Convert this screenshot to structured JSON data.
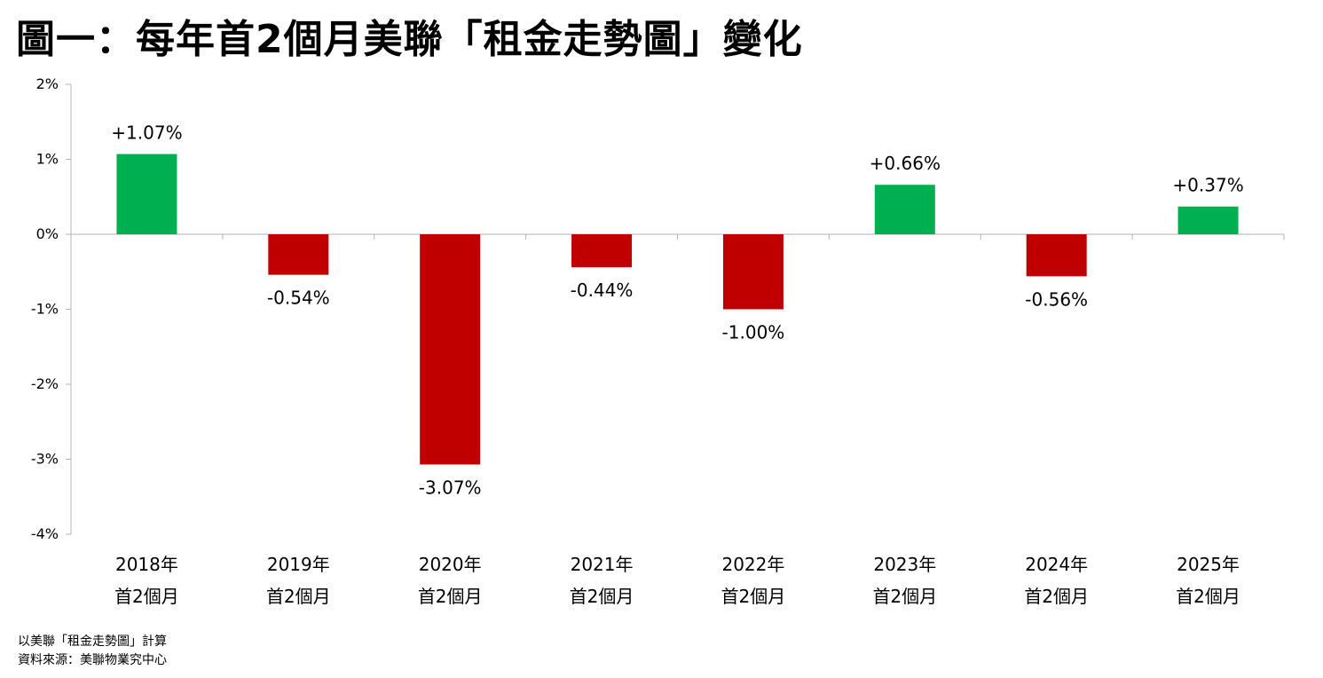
{
  "title": "圖一：每年首2個月美聯「租金走勢圖」變化",
  "footnotes": {
    "note": "以美聯「租金走勢圖」計算",
    "source": "資料來源：美聯物業究中心"
  },
  "colors": {
    "positive": "#00b050",
    "negative": "#c00000",
    "axis": "#b3b3b3"
  },
  "chart_data": {
    "type": "bar",
    "categories": [
      [
        "2018年",
        "首2個月"
      ],
      [
        "2019年",
        "首2個月"
      ],
      [
        "2020年",
        "首2個月"
      ],
      [
        "2021年",
        "首2個月"
      ],
      [
        "2022年",
        "首2個月"
      ],
      [
        "2023年",
        "首2個月"
      ],
      [
        "2024年",
        "首2個月"
      ],
      [
        "2025年",
        "首2個月"
      ]
    ],
    "values": [
      1.07,
      -0.54,
      -3.07,
      -0.44,
      -1.0,
      0.66,
      -0.56,
      0.37
    ],
    "data_labels": [
      "+1.07%",
      "-0.54%",
      "-3.07%",
      "-0.44%",
      "-1.00%",
      "+0.66%",
      "-0.56%",
      "+0.37%"
    ],
    "y_ticks": [
      2,
      1,
      0,
      -1,
      -2,
      -3,
      -4
    ],
    "y_tick_labels": [
      "2%",
      "1%",
      "0%",
      "-1%",
      "-2%",
      "-3%",
      "-4%"
    ],
    "ylim": [
      -4,
      2
    ],
    "grid": false,
    "legend": "none"
  }
}
